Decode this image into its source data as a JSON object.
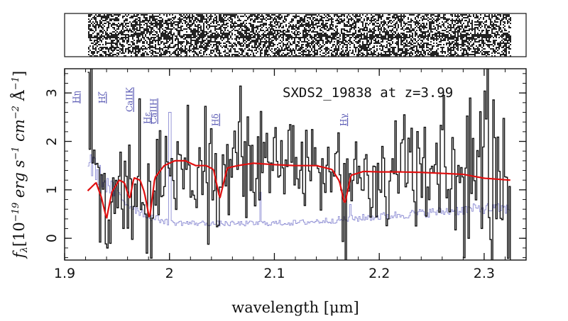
{
  "chart_data": [
    {
      "type": "heatmap",
      "title": "",
      "description_values": {
        "panel": "2D spectrum image",
        "x_extent_um": [
          1.922,
          2.325
        ]
      }
    },
    {
      "type": "line",
      "title": "",
      "xlabel": "wavelength [μm]",
      "ylabel": "f_λ [10^-19 erg s^-1 cm^-2 Å^-1]",
      "ylabel_parts": {
        "symbol": "f",
        "sub": "λ",
        "bracket_open": "[10",
        "exp1": "−19",
        "erg": " erg s",
        "exp2": "−1",
        "cm": " cm",
        "exp3": "−2",
        "ang": " Å",
        "exp4": "−1",
        "bracket_close": "]"
      },
      "annotation": "SXDS2_19838 at z=3.99",
      "xlim": [
        1.9,
        2.34
      ],
      "ylim": [
        -0.45,
        3.5
      ],
      "x_ticks": [
        1.9,
        2.0,
        2.1,
        2.2,
        2.3
      ],
      "x_tick_labels": [
        "1.9",
        "2",
        "2.1",
        "2.2",
        "2.3"
      ],
      "y_ticks": [
        0,
        1,
        2,
        3
      ],
      "y_tick_labels": [
        "0",
        "1",
        "2",
        "3"
      ],
      "grid": false,
      "line_labels": [
        {
          "text": "Hη",
          "x": 1.911
        },
        {
          "text": "Hζ",
          "x": 1.936
        },
        {
          "text": "CaIIK",
          "x": 1.962
        },
        {
          "text": "Hε",
          "x": 1.979
        },
        {
          "text": "CaIIH",
          "x": 1.985
        },
        {
          "text": "Hδ",
          "x": 2.044
        },
        {
          "text": "Hγ",
          "x": 2.166
        }
      ],
      "series": [
        {
          "color": "#111111",
          "style": "step",
          "x_range": [
            1.922,
            2.325
          ],
          "points_per_series": 290,
          "random_seed": 19838,
          "continuum_reference": "model",
          "scatter_sigma": 0.65,
          "noisy_windows": [
            {
              "from": 1.922,
              "to": 1.928,
              "sigma": 3.0
            },
            {
              "from": 1.955,
              "to": 1.962,
              "sigma": 1.5
            },
            {
              "from": 2.033,
              "to": 2.045,
              "sigma": 1.4
            },
            {
              "from": 2.128,
              "to": 2.136,
              "sigma": 1.3
            },
            {
              "from": 2.29,
              "to": 2.325,
              "sigma": 1.2
            }
          ]
        },
        {
          "color": "#e01010",
          "style": "line",
          "anchors_x": [
            1.922,
            1.93,
            1.935,
            1.94,
            1.945,
            1.952,
            1.957,
            1.962,
            1.966,
            1.972,
            1.976,
            1.981,
            1.986,
            1.995,
            2.005,
            2.015,
            2.025,
            2.035,
            2.042,
            2.048,
            2.055,
            2.065,
            2.08,
            2.1,
            2.12,
            2.14,
            2.155,
            2.162,
            2.167,
            2.173,
            2.185,
            2.2,
            2.22,
            2.24,
            2.26,
            2.28,
            2.3,
            2.325
          ],
          "anchors_y": [
            0.98,
            1.15,
            0.85,
            0.4,
            0.95,
            1.2,
            1.15,
            0.8,
            1.25,
            1.2,
            0.95,
            0.4,
            1.25,
            1.5,
            1.6,
            1.6,
            1.5,
            1.5,
            1.42,
            0.82,
            1.45,
            1.5,
            1.55,
            1.52,
            1.5,
            1.5,
            1.42,
            1.18,
            0.7,
            1.3,
            1.38,
            1.37,
            1.37,
            1.36,
            1.34,
            1.32,
            1.24,
            1.2
          ]
        },
        {
          "color": "#8e8ed4",
          "style": "step",
          "x_range": [
            1.922,
            2.325
          ],
          "base_anchors_x": [
            1.922,
            1.94,
            1.96,
            1.98,
            2.0,
            2.06,
            2.12,
            2.16,
            2.2,
            2.3,
            2.325
          ],
          "base_anchors_y": [
            1.6,
            1.1,
            0.7,
            0.45,
            0.32,
            0.3,
            0.32,
            0.38,
            0.45,
            0.62,
            0.6
          ],
          "spikes": [
            {
              "x": 1.999,
              "y": 3.6
            },
            {
              "x": 2.0,
              "y": 2.6
            },
            {
              "x": 2.086,
              "y": 0.95
            },
            {
              "x": 2.172,
              "y": 0.7
            }
          ]
        }
      ]
    }
  ]
}
